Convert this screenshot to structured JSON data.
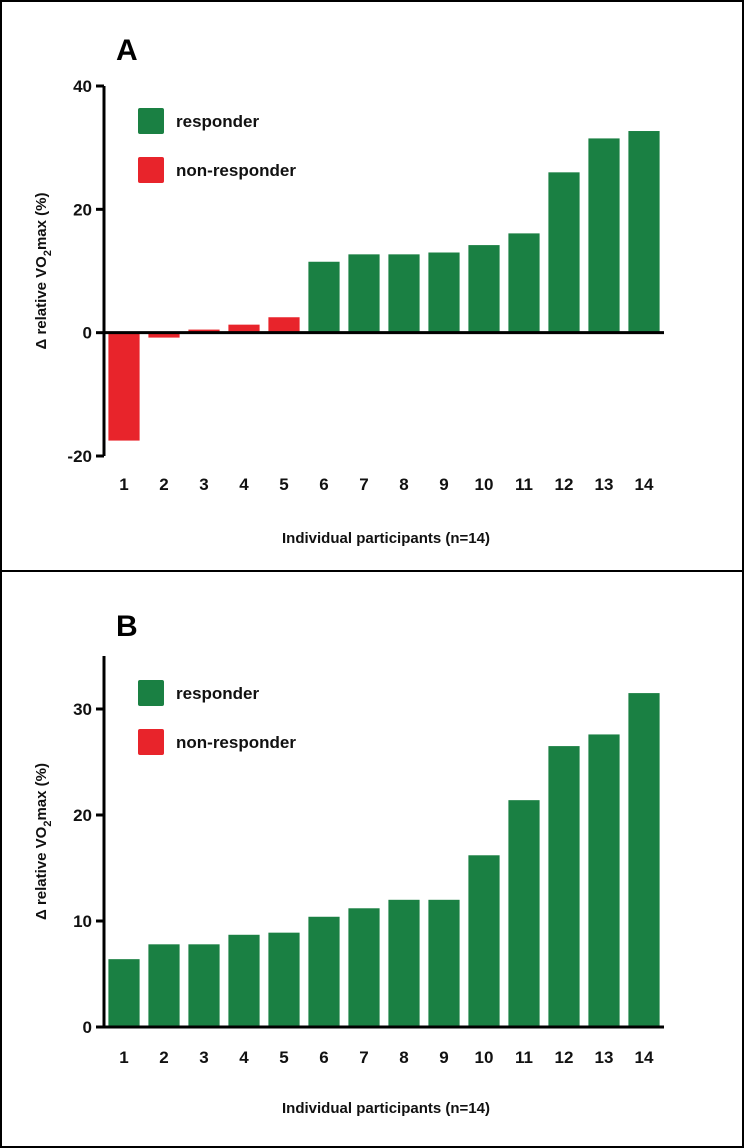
{
  "colors": {
    "responder": "#1a8043",
    "non_responder": "#e8242b",
    "axis": "#000000"
  },
  "chart_data": [
    {
      "type": "bar",
      "panel": "A",
      "categories": [
        "1",
        "2",
        "3",
        "4",
        "5",
        "6",
        "7",
        "8",
        "9",
        "10",
        "11",
        "12",
        "13",
        "14"
      ],
      "values": [
        -17.5,
        -0.8,
        0.5,
        1.3,
        2.5,
        11.5,
        12.7,
        12.7,
        13.0,
        14.2,
        16.1,
        26.0,
        31.5,
        32.7
      ],
      "groups": [
        "non-responder",
        "non-responder",
        "non-responder",
        "non-responder",
        "non-responder",
        "responder",
        "responder",
        "responder",
        "responder",
        "responder",
        "responder",
        "responder",
        "responder",
        "responder"
      ],
      "xlabel": "Individual participants (n=14)",
      "ylabel": "Δ relative VO2max (%)",
      "ylim": [
        -20,
        40
      ],
      "yticks": [
        "-20",
        "0",
        "20",
        "40"
      ],
      "legend": {
        "placement": "top-left",
        "items": [
          "responder",
          "non-responder"
        ]
      },
      "grid": false
    },
    {
      "type": "bar",
      "panel": "B",
      "categories": [
        "1",
        "2",
        "3",
        "4",
        "5",
        "6",
        "7",
        "8",
        "9",
        "10",
        "11",
        "12",
        "13",
        "14"
      ],
      "values": [
        6.4,
        7.8,
        7.8,
        8.7,
        8.9,
        10.4,
        11.2,
        12.0,
        12.0,
        16.2,
        21.4,
        26.5,
        27.6,
        31.5
      ],
      "groups": [
        "responder",
        "responder",
        "responder",
        "responder",
        "responder",
        "responder",
        "responder",
        "responder",
        "responder",
        "responder",
        "responder",
        "responder",
        "responder",
        "responder"
      ],
      "xlabel": "Individual participants (n=14)",
      "ylabel": "Δ relative VO2max (%)",
      "ylim": [
        0,
        35
      ],
      "yticks": [
        "0",
        "10",
        "20",
        "30"
      ],
      "legend": {
        "placement": "top-left",
        "items": [
          "responder",
          "non-responder"
        ]
      },
      "grid": false
    }
  ]
}
